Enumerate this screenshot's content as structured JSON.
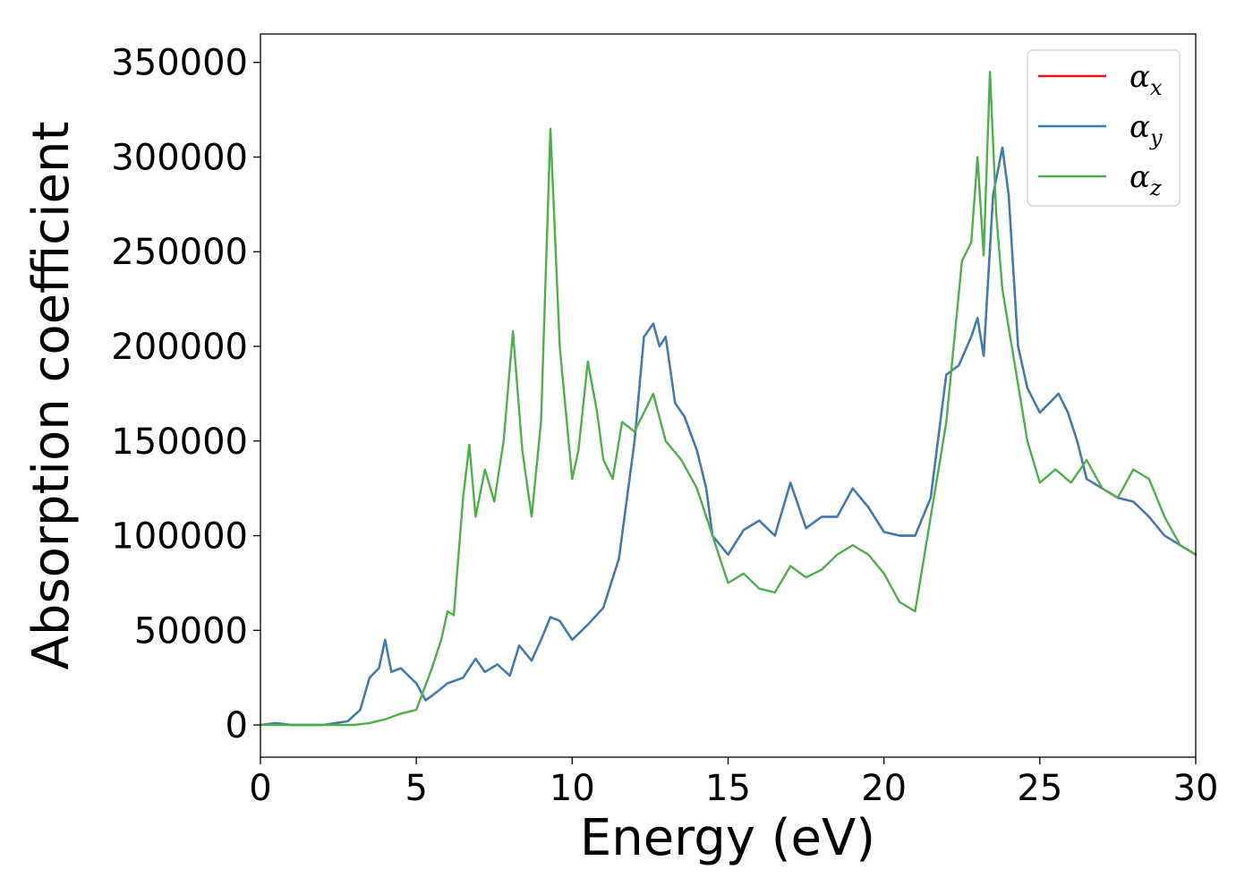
{
  "chart_data": {
    "type": "line",
    "xlabel": "Energy (eV)",
    "ylabel": "Absorption coefficient",
    "xlim": [
      0,
      30
    ],
    "ylim": [
      -17000,
      365000
    ],
    "x_ticks": [
      "0",
      "5",
      "10",
      "15",
      "20",
      "25",
      "30"
    ],
    "y_ticks": [
      "0",
      "50000",
      "100000",
      "150000",
      "200000",
      "250000",
      "300000",
      "350000"
    ],
    "grid": false,
    "legend_position": "top-right",
    "series": [
      {
        "name": "α_x",
        "color": "#e41a1c",
        "x": [
          0,
          0.5,
          1,
          2,
          2.8,
          3.2,
          3.5,
          3.8,
          4.0,
          4.2,
          4.5,
          5.0,
          5.3,
          5.7,
          6.0,
          6.5,
          6.9,
          7.2,
          7.6,
          8.0,
          8.3,
          8.7,
          9.0,
          9.3,
          9.6,
          10.0,
          10.5,
          11.0,
          11.5,
          12.0,
          12.3,
          12.6,
          12.8,
          13.0,
          13.3,
          13.6,
          14.0,
          14.3,
          14.5,
          15.0,
          15.5,
          16.0,
          16.5,
          17.0,
          17.5,
          18.0,
          18.5,
          19.0,
          19.5,
          20.0,
          20.5,
          21.0,
          21.5,
          22.0,
          22.4,
          22.8,
          23.0,
          23.2,
          23.5,
          23.8,
          24.0,
          24.3,
          24.6,
          25.0,
          25.3,
          25.6,
          25.9,
          26.2,
          26.5,
          27.0,
          27.5,
          28.0,
          28.5,
          29.0,
          29.5,
          30.0
        ],
        "y": [
          0,
          1000,
          0,
          0,
          2000,
          8000,
          25000,
          30000,
          45000,
          28000,
          30000,
          22000,
          13000,
          18000,
          22000,
          25000,
          35000,
          28000,
          32000,
          26000,
          42000,
          34000,
          45000,
          57000,
          55000,
          45000,
          53000,
          62000,
          88000,
          150000,
          205000,
          212000,
          200000,
          205000,
          170000,
          163000,
          145000,
          125000,
          100000,
          90000,
          103000,
          108000,
          100000,
          128000,
          104000,
          110000,
          110000,
          125000,
          115000,
          102000,
          100000,
          100000,
          120000,
          185000,
          190000,
          205000,
          215000,
          195000,
          280000,
          305000,
          280000,
          200000,
          178000,
          165000,
          170000,
          175000,
          165000,
          150000,
          130000,
          125000,
          120000,
          118000,
          110000,
          100000,
          95000,
          90000
        ]
      },
      {
        "name": "α_y",
        "color": "#377eb8",
        "x": [
          0,
          0.5,
          1,
          2,
          2.8,
          3.2,
          3.5,
          3.8,
          4.0,
          4.2,
          4.5,
          5.0,
          5.3,
          5.7,
          6.0,
          6.5,
          6.9,
          7.2,
          7.6,
          8.0,
          8.3,
          8.7,
          9.0,
          9.3,
          9.6,
          10.0,
          10.5,
          11.0,
          11.5,
          12.0,
          12.3,
          12.6,
          12.8,
          13.0,
          13.3,
          13.6,
          14.0,
          14.3,
          14.5,
          15.0,
          15.5,
          16.0,
          16.5,
          17.0,
          17.5,
          18.0,
          18.5,
          19.0,
          19.5,
          20.0,
          20.5,
          21.0,
          21.5,
          22.0,
          22.4,
          22.8,
          23.0,
          23.2,
          23.5,
          23.8,
          24.0,
          24.3,
          24.6,
          25.0,
          25.3,
          25.6,
          25.9,
          26.2,
          26.5,
          27.0,
          27.5,
          28.0,
          28.5,
          29.0,
          29.5,
          30.0
        ],
        "y": [
          0,
          1000,
          0,
          0,
          2000,
          8000,
          25000,
          30000,
          45000,
          28000,
          30000,
          22000,
          13000,
          18000,
          22000,
          25000,
          35000,
          28000,
          32000,
          26000,
          42000,
          34000,
          45000,
          57000,
          55000,
          45000,
          53000,
          62000,
          88000,
          150000,
          205000,
          212000,
          200000,
          205000,
          170000,
          163000,
          145000,
          125000,
          100000,
          90000,
          103000,
          108000,
          100000,
          128000,
          104000,
          110000,
          110000,
          125000,
          115000,
          102000,
          100000,
          100000,
          120000,
          185000,
          190000,
          205000,
          215000,
          195000,
          280000,
          305000,
          280000,
          200000,
          178000,
          165000,
          170000,
          175000,
          165000,
          150000,
          130000,
          125000,
          120000,
          118000,
          110000,
          100000,
          95000,
          90000
        ]
      },
      {
        "name": "α_z",
        "color": "#4daf4a",
        "x": [
          0,
          1,
          2,
          3,
          3.5,
          4.0,
          4.5,
          5.0,
          5.5,
          5.8,
          6.0,
          6.2,
          6.5,
          6.7,
          6.9,
          7.2,
          7.5,
          7.8,
          8.1,
          8.4,
          8.7,
          9.0,
          9.3,
          9.6,
          10.0,
          10.2,
          10.5,
          10.8,
          11.0,
          11.3,
          11.6,
          12.0,
          12.3,
          12.6,
          13.0,
          13.5,
          14.0,
          14.5,
          15.0,
          15.5,
          16.0,
          16.5,
          17.0,
          17.5,
          18.0,
          18.5,
          19.0,
          19.5,
          20.0,
          20.5,
          21.0,
          21.5,
          22.0,
          22.5,
          22.8,
          23.0,
          23.2,
          23.4,
          23.6,
          23.8,
          24.2,
          24.6,
          25.0,
          25.5,
          26.0,
          26.5,
          27.0,
          27.5,
          28.0,
          28.5,
          29.0,
          29.5,
          30.0
        ],
        "y": [
          0,
          0,
          0,
          0,
          1000,
          3000,
          6000,
          8000,
          30000,
          45000,
          60000,
          58000,
          120000,
          148000,
          110000,
          135000,
          118000,
          150000,
          208000,
          145000,
          110000,
          160000,
          315000,
          200000,
          130000,
          145000,
          192000,
          165000,
          140000,
          130000,
          160000,
          155000,
          165000,
          175000,
          150000,
          140000,
          125000,
          100000,
          75000,
          80000,
          72000,
          70000,
          84000,
          78000,
          82000,
          90000,
          95000,
          90000,
          80000,
          65000,
          60000,
          110000,
          160000,
          245000,
          255000,
          300000,
          248000,
          345000,
          270000,
          230000,
          190000,
          150000,
          128000,
          135000,
          128000,
          140000,
          125000,
          120000,
          135000,
          130000,
          110000,
          95000,
          90000
        ]
      }
    ]
  }
}
